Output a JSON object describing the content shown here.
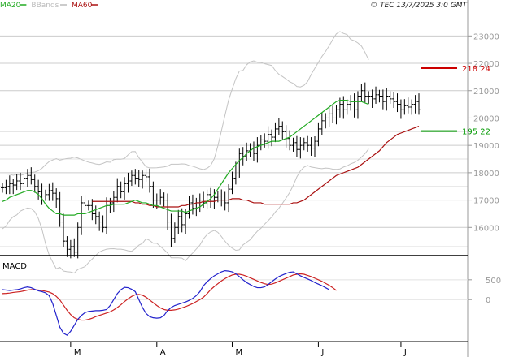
{
  "legend": [
    {
      "label": "MA20",
      "color": "#22aa22"
    },
    {
      "label": "BBands",
      "color": "#bbbbbb"
    },
    {
      "label": "MA60",
      "color": "#aa1111"
    }
  ],
  "copyright": "© TEC 13/7/2025 3:0 GMT",
  "colors": {
    "ma20": "#22aa22",
    "ma60": "#aa1111",
    "bbands": "#c4c4c4",
    "ohlc": "#000000",
    "macd": "#2222cc",
    "signal": "#cc2222",
    "grid": "#cccccc",
    "axis": "#999999"
  },
  "chart_data": [
    {
      "type": "line",
      "subtype": "ohlc-with-indicators",
      "y_ticks": [
        "16000",
        "17000",
        "18000",
        "19000",
        "20000",
        "21000",
        "22000",
        "23000"
      ],
      "ylim": [
        15000,
        23900
      ],
      "x_ticks": [
        {
          "label": "M",
          "index": 19
        },
        {
          "label": "A",
          "index": 43
        },
        {
          "label": "M",
          "index": 64
        },
        {
          "label": "J",
          "index": 88
        },
        {
          "label": "J",
          "index": 111
        }
      ],
      "markers": [
        {
          "value": 21824,
          "label": "218 24",
          "color": "#cc0000"
        },
        {
          "value": 19522,
          "label": "195 22",
          "color": "#009900"
        }
      ],
      "close": [
        17450,
        17500,
        17600,
        17550,
        17700,
        17600,
        17800,
        17900,
        17750,
        17500,
        17300,
        17150,
        17200,
        17350,
        17250,
        17050,
        16200,
        15500,
        15200,
        15300,
        15100,
        16000,
        16900,
        16800,
        16800,
        16500,
        16400,
        16200,
        16000,
        16800,
        16900,
        17100,
        17500,
        17300,
        17600,
        17700,
        17900,
        17800,
        17750,
        17900,
        17850,
        17500,
        17000,
        17000,
        17100,
        17000,
        16200,
        15600,
        16000,
        16400,
        16100,
        16500,
        16900,
        16700,
        16900,
        17000,
        16900,
        17200,
        17000,
        17100,
        17150,
        17000,
        16900,
        17400,
        17800,
        18100,
        18700,
        18600,
        18800,
        18900,
        18700,
        19000,
        19200,
        19150,
        19400,
        19300,
        19600,
        19700,
        19500,
        19250,
        19000,
        19100,
        18850,
        19000,
        19100,
        19000,
        18900,
        19150,
        19600,
        19900,
        20000,
        20150,
        20000,
        20300,
        20500,
        20300,
        20500,
        20600,
        20300,
        20800,
        21000,
        20800,
        20800,
        20700,
        20850,
        20800,
        20600,
        20800,
        20700,
        20600,
        20500,
        20300,
        20450,
        20400,
        20500,
        20600,
        20300
      ],
      "ma20": [
        16950,
        17000,
        17100,
        17150,
        17200,
        17250,
        17300,
        17350,
        17350,
        17300,
        17200,
        17050,
        16850,
        16700,
        16600,
        16500,
        16500,
        16450,
        16450,
        16450,
        16450,
        16500,
        16500,
        16500,
        16550,
        16600,
        16650,
        16700,
        16750,
        16800,
        16800,
        16850,
        16850,
        16850,
        16850,
        16900,
        16950,
        17000,
        16950,
        16900,
        16900,
        16850,
        16800,
        16800,
        16750,
        16700,
        16650,
        16600,
        16600,
        16600,
        16600,
        16550,
        16600,
        16650,
        16700,
        16750,
        16850,
        16950,
        17050,
        17200,
        17400,
        17600,
        17800,
        18000,
        18150,
        18300,
        18450,
        18550,
        18700,
        18800,
        18900,
        18950,
        19000,
        19050,
        19100,
        19150,
        19150,
        19150,
        19200,
        19250,
        19300,
        19400,
        19500,
        19600,
        19700,
        19800,
        19900,
        20000,
        20100,
        20200,
        20300,
        20400,
        20500,
        20600,
        20650,
        20650,
        20650,
        20600,
        20600,
        20600,
        20600,
        20550,
        20500
      ],
      "ma20_start_index": 0,
      "ma60": [
        16950,
        16950,
        16950,
        16950,
        16950,
        16950,
        16950,
        16950,
        16950,
        16950,
        16950,
        16950,
        16900,
        16900,
        16850,
        16850,
        16800,
        16800,
        16750,
        16750,
        16750,
        16750,
        16750,
        16750,
        16750,
        16800,
        16800,
        16850,
        16850,
        16900,
        16900,
        16950,
        16950,
        16950,
        16950,
        17000,
        17000,
        17000,
        17000,
        17050,
        17050,
        17050,
        17000,
        17000,
        16950,
        16900,
        16900,
        16900,
        16850,
        16850,
        16850,
        16850,
        16850,
        16850,
        16850,
        16850,
        16900,
        16900,
        16950,
        17000,
        17100,
        17200,
        17300,
        17400,
        17500,
        17600,
        17700,
        17800,
        17900,
        17950,
        18000,
        18050,
        18100,
        18150,
        18200,
        18300,
        18400,
        18500,
        18600,
        18700,
        18800,
        18950,
        19100,
        19200,
        19300,
        19400,
        19450,
        19500,
        19550,
        19600,
        19650,
        19700
      ],
      "ma60_start_index": 25,
      "macd": [
        250,
        240,
        230,
        240,
        250,
        270,
        300,
        320,
        300,
        260,
        220,
        200,
        170,
        100,
        -100,
        -400,
        -700,
        -850,
        -900,
        -800,
        -650,
        -500,
        -400,
        -330,
        -300,
        -290,
        -280,
        -280,
        -270,
        -250,
        -150,
        0,
        150,
        250,
        310,
        300,
        260,
        200,
        0,
        -200,
        -350,
        -430,
        -460,
        -470,
        -460,
        -400,
        -280,
        -200,
        -150,
        -120,
        -90,
        -60,
        -20,
        30,
        100,
        200,
        350,
        450,
        530,
        600,
        650,
        700,
        730,
        720,
        700,
        650,
        580,
        500,
        430,
        380,
        330,
        300,
        300,
        320,
        380,
        450,
        520,
        580,
        620,
        660,
        690,
        700,
        650,
        600,
        560,
        520,
        480,
        430,
        390,
        350,
        300,
        250
      ],
      "macd_start_index": 0,
      "signal": [
        150,
        155,
        165,
        180,
        190,
        200,
        220,
        240,
        250,
        250,
        240,
        230,
        210,
        190,
        150,
        80,
        -10,
        -140,
        -270,
        -380,
        -460,
        -500,
        -520,
        -520,
        -500,
        -470,
        -430,
        -400,
        -370,
        -340,
        -310,
        -260,
        -200,
        -130,
        -50,
        20,
        80,
        120,
        130,
        110,
        60,
        -10,
        -80,
        -150,
        -210,
        -250,
        -270,
        -270,
        -260,
        -240,
        -210,
        -180,
        -140,
        -100,
        -50,
        0,
        60,
        150,
        250,
        330,
        400,
        470,
        530,
        580,
        620,
        640,
        640,
        620,
        590,
        550,
        510,
        470,
        430,
        400,
        380,
        390,
        420,
        460,
        500,
        540,
        580,
        620,
        640,
        650,
        640,
        610,
        580,
        540,
        500,
        460,
        410,
        360,
        300,
        230
      ],
      "macd_ylim": [
        -1000,
        1050
      ],
      "macd_y_ticks": [
        "500",
        "0"
      ],
      "panel_label": "MACD"
    }
  ]
}
